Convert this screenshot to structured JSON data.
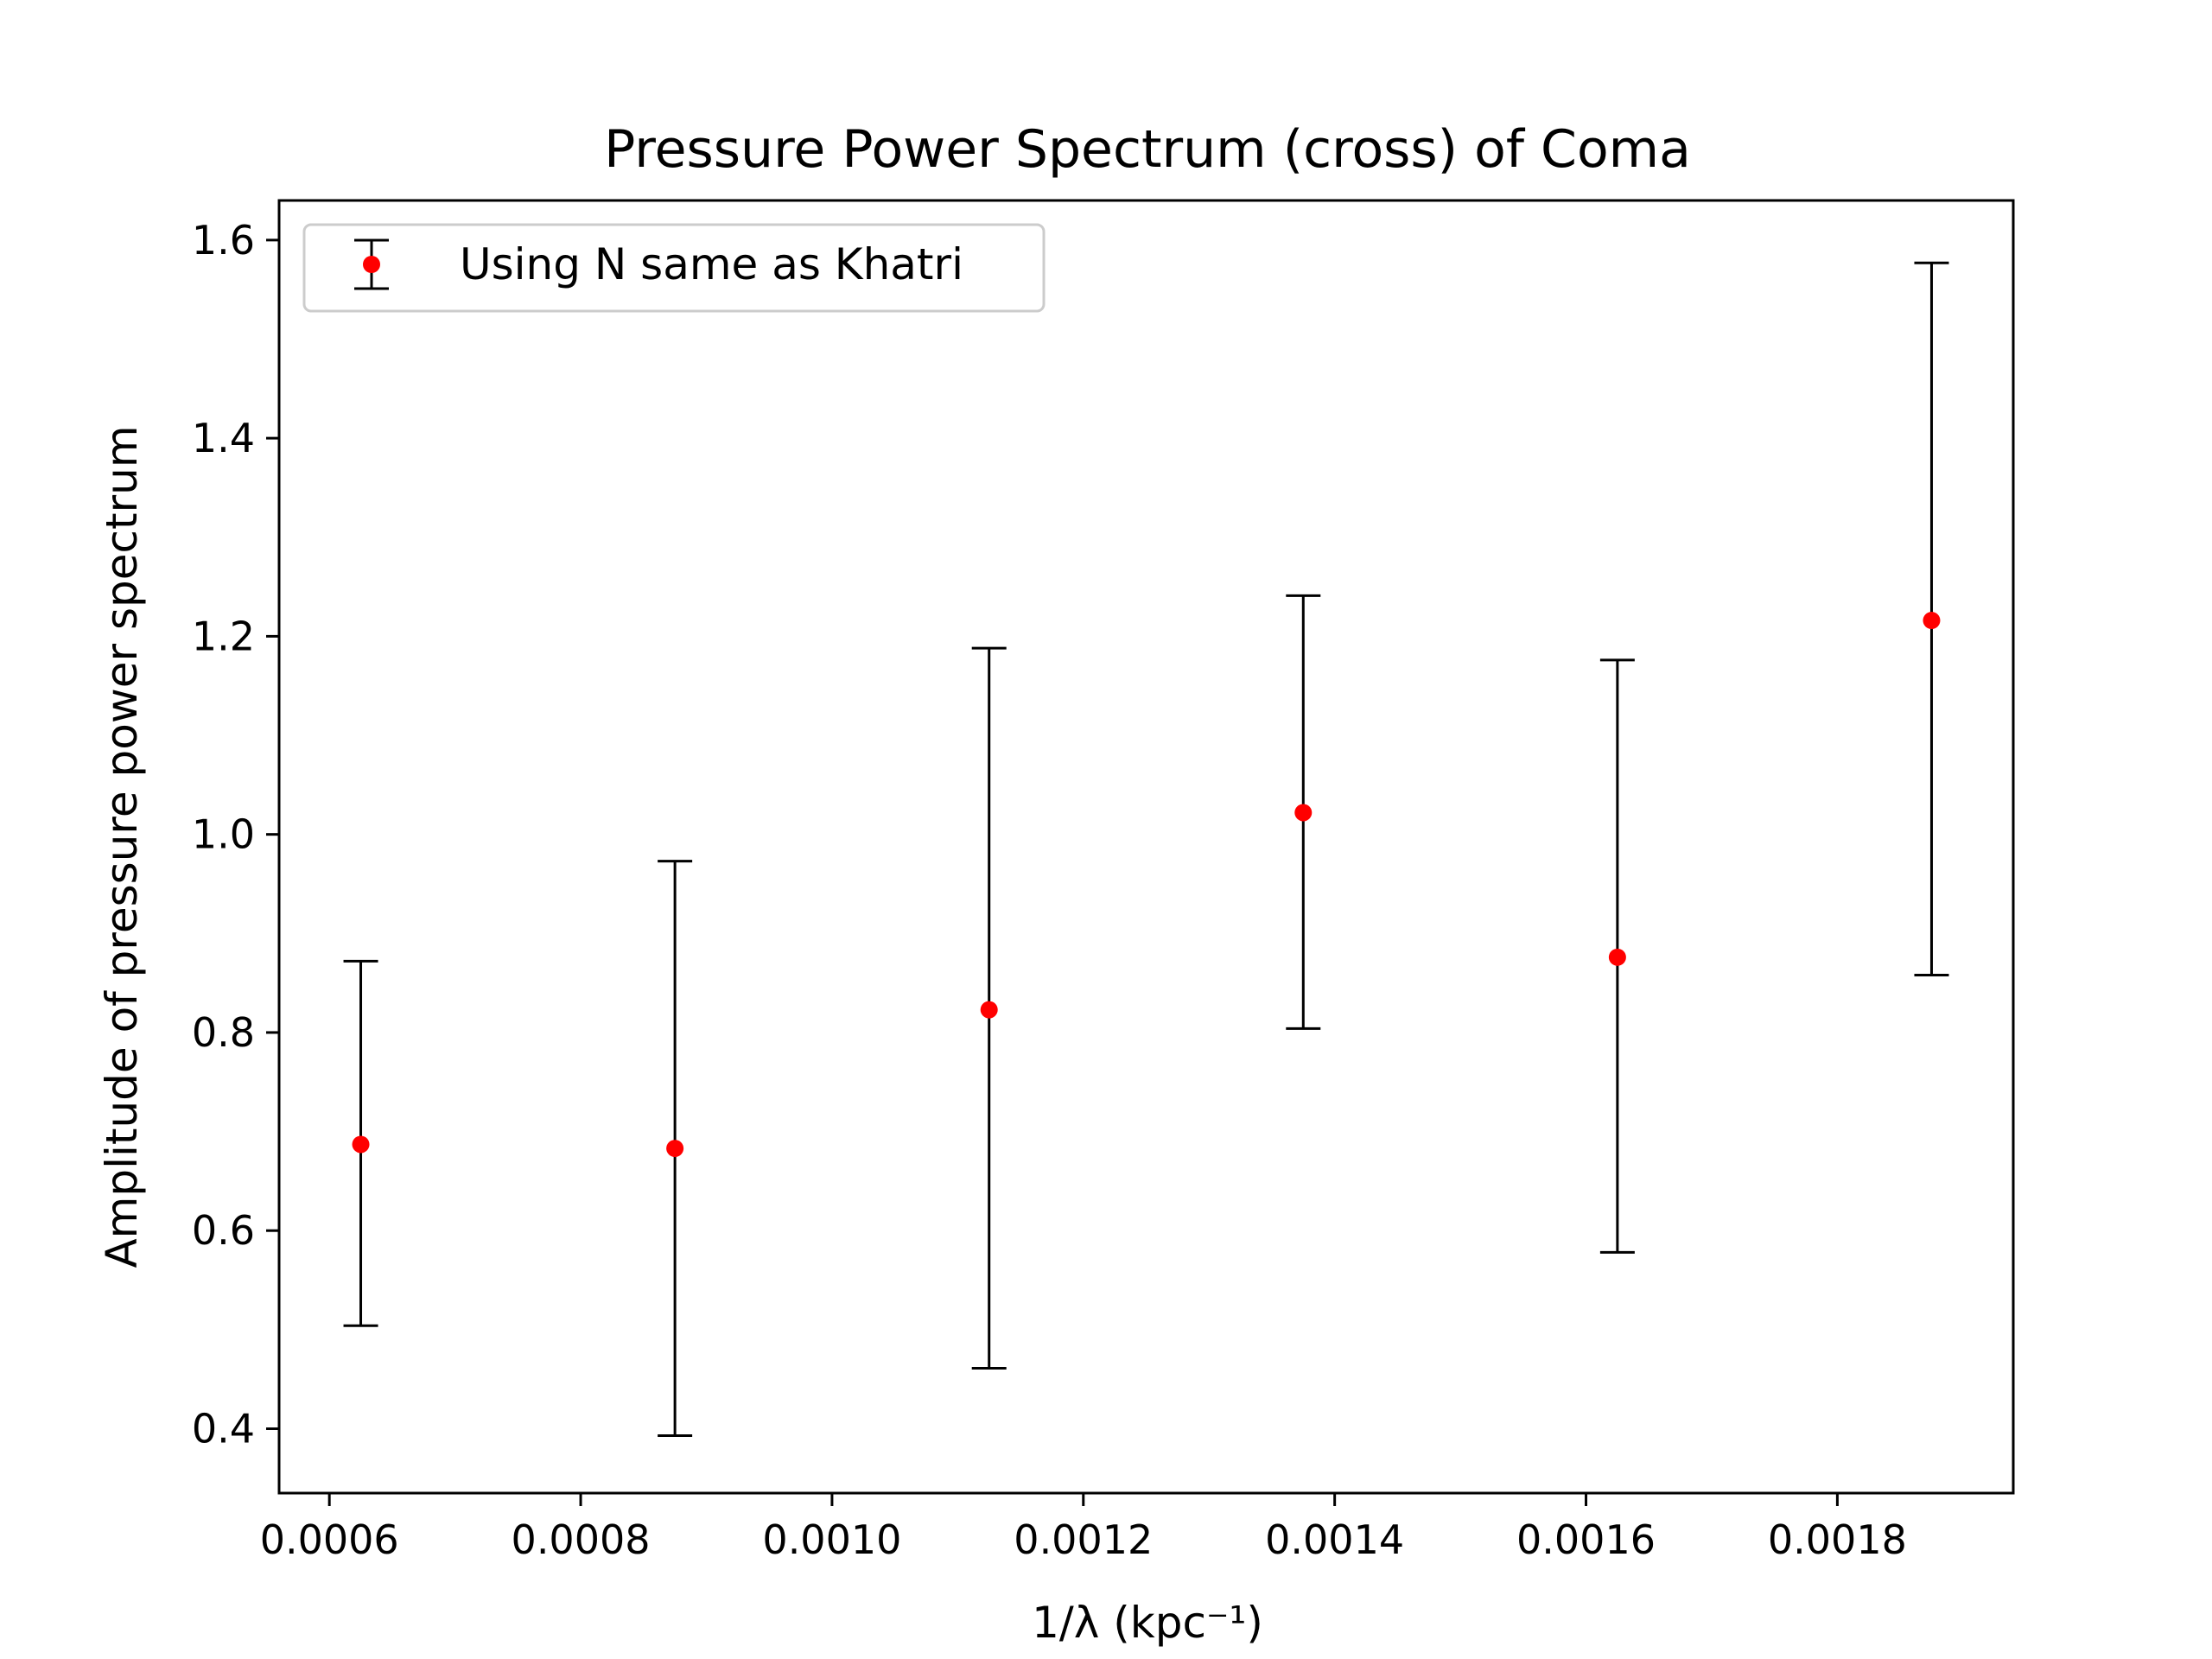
{
  "chart_data": {
    "type": "scatter",
    "title": "Pressure Power Spectrum (cross) of Coma",
    "xlabel": "1/λ (kpc⁻¹)",
    "ylabel": "Amplitude of pressure power spectrum",
    "xlim": [
      0.00056,
      0.00194
    ],
    "ylim": [
      0.335,
      1.64
    ],
    "xticks": [
      0.0006,
      0.0008,
      0.001,
      0.0012,
      0.0014,
      0.0016,
      0.0018
    ],
    "xtick_labels": [
      "0.0006",
      "0.0008",
      "0.0010",
      "0.0012",
      "0.0014",
      "0.0016",
      "0.0018"
    ],
    "yticks": [
      0.4,
      0.6,
      0.8,
      1.0,
      1.2,
      1.4,
      1.6
    ],
    "ytick_labels": [
      "0.4",
      "0.6",
      "0.8",
      "1.0",
      "1.2",
      "1.4",
      "1.6"
    ],
    "grid": false,
    "legend_position": "top-left",
    "series": [
      {
        "name": "Using N same as Khatri",
        "marker_color": "#ff0000",
        "errorbar_color": "#000000",
        "x": [
          0.000625,
          0.000875,
          0.001125,
          0.001375,
          0.001625,
          0.001875
        ],
        "y": [
          0.687,
          0.683,
          0.823,
          1.022,
          0.876,
          1.216
        ],
        "yerr_low": [
          0.504,
          0.393,
          0.461,
          0.804,
          0.578,
          0.858
        ],
        "yerr_high": [
          0.872,
          0.973,
          1.188,
          1.241,
          1.176,
          1.577
        ]
      }
    ]
  }
}
